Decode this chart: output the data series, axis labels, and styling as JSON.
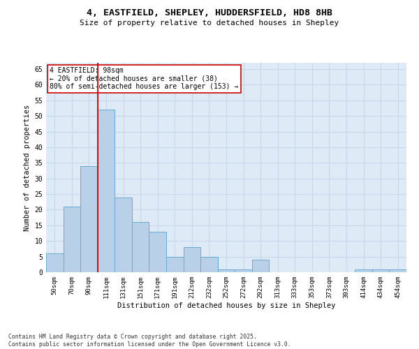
{
  "title_line1": "4, EASTFIELD, SHEPLEY, HUDDERSFIELD, HD8 8HB",
  "title_line2": "Size of property relative to detached houses in Shepley",
  "xlabel": "Distribution of detached houses by size in Shepley",
  "ylabel": "Number of detached properties",
  "categories": [
    "50sqm",
    "70sqm",
    "90sqm",
    "111sqm",
    "131sqm",
    "151sqm",
    "171sqm",
    "191sqm",
    "212sqm",
    "232sqm",
    "252sqm",
    "272sqm",
    "292sqm",
    "313sqm",
    "333sqm",
    "353sqm",
    "373sqm",
    "393sqm",
    "414sqm",
    "434sqm",
    "454sqm"
  ],
  "values": [
    6,
    21,
    34,
    52,
    24,
    16,
    13,
    5,
    8,
    5,
    1,
    1,
    4,
    0,
    0,
    0,
    0,
    0,
    1,
    1,
    1
  ],
  "bar_color": "#b8d0e8",
  "bar_edge_color": "#6aaad4",
  "grid_color": "#c8d8ea",
  "background_color": "#deeaf6",
  "vline_x_idx": 2,
  "vline_color": "#cc0000",
  "annotation_text": "4 EASTFIELD: 98sqm\n← 20% of detached houses are smaller (38)\n80% of semi-detached houses are larger (153) →",
  "annotation_box_color": "white",
  "annotation_box_edge_color": "#cc0000",
  "footer_text": "Contains HM Land Registry data © Crown copyright and database right 2025.\nContains public sector information licensed under the Open Government Licence v3.0.",
  "ylim": [
    0,
    67
  ],
  "yticks": [
    0,
    5,
    10,
    15,
    20,
    25,
    30,
    35,
    40,
    45,
    50,
    55,
    60,
    65
  ]
}
